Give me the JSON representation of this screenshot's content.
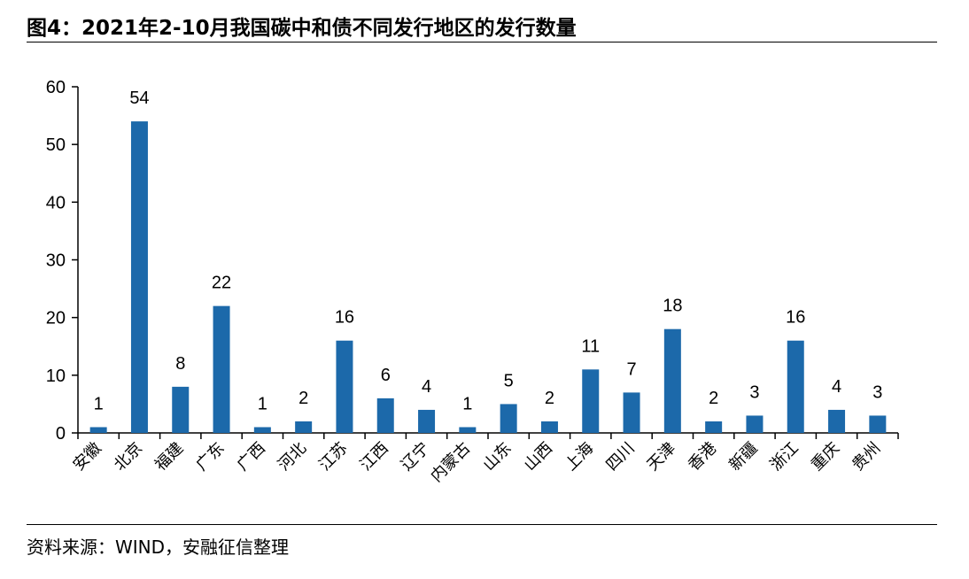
{
  "title": "图4：2021年2-10月我国碳中和债不同发行地区的发行数量",
  "source": "资料来源：WIND，安融征信整理",
  "colors": {
    "bar": "#1c69aa",
    "axis": "#000000",
    "text": "#000000"
  },
  "chart_data": {
    "type": "bar",
    "title": "",
    "xlabel": "",
    "ylabel": "",
    "ylim": [
      0,
      60
    ],
    "yticks": [
      0,
      10,
      20,
      30,
      40,
      50,
      60
    ],
    "grid": false,
    "categories": [
      "安徽",
      "北京",
      "福建",
      "广东",
      "广西",
      "河北",
      "江苏",
      "江西",
      "辽宁",
      "内蒙古",
      "山东",
      "山西",
      "上海",
      "四川",
      "天津",
      "香港",
      "新疆",
      "浙江",
      "重庆",
      "贵州"
    ],
    "values": [
      1,
      54,
      8,
      22,
      1,
      2,
      16,
      6,
      4,
      1,
      5,
      2,
      11,
      7,
      18,
      2,
      3,
      16,
      4,
      3
    ]
  }
}
